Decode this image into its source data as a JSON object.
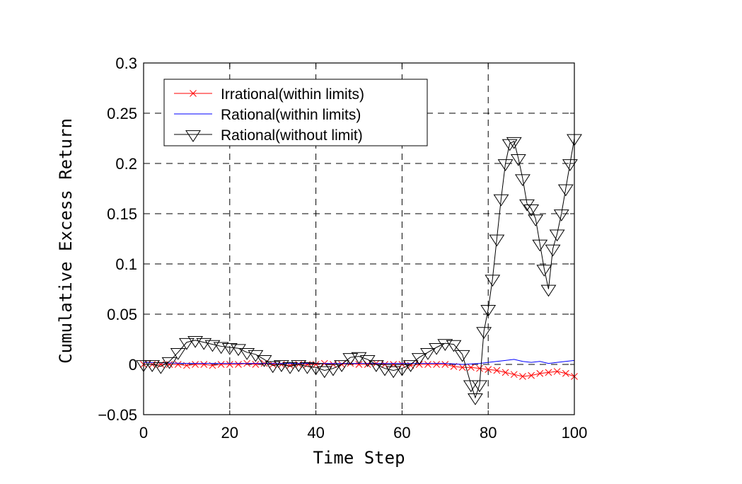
{
  "chart_data": {
    "type": "line",
    "xlabel": "Time Step",
    "ylabel": "Cumulative Excess Return",
    "xlim": [
      0,
      100
    ],
    "ylim": [
      -0.05,
      0.3
    ],
    "xticks": [
      0,
      20,
      40,
      60,
      80,
      100
    ],
    "xtick_labels": [
      "0",
      "20",
      "40",
      "60",
      "80",
      "100"
    ],
    "yticks": [
      -0.05,
      0,
      0.05,
      0.1,
      0.15,
      0.2,
      0.25,
      0.3
    ],
    "ytick_labels": [
      "−0.05",
      "0",
      "0.05",
      "0.1",
      "0.15",
      "0.2",
      "0.25",
      "0.3"
    ],
    "grid": true,
    "legend_position": "top-left",
    "series": [
      {
        "name": "Irrational(within limits)",
        "color": "#ff0000",
        "marker": "x",
        "x": [
          0,
          2,
          4,
          6,
          8,
          10,
          12,
          14,
          16,
          18,
          20,
          22,
          24,
          26,
          28,
          30,
          32,
          34,
          36,
          38,
          40,
          42,
          44,
          46,
          48,
          50,
          52,
          54,
          56,
          58,
          60,
          62,
          64,
          66,
          68,
          70,
          72,
          74,
          76,
          78,
          80,
          82,
          84,
          86,
          88,
          90,
          92,
          94,
          96,
          98,
          100
        ],
        "y": [
          0,
          0,
          0,
          0,
          0,
          -0.001,
          0,
          0,
          -0.001,
          0,
          0,
          0,
          0.001,
          0,
          0.001,
          0,
          0,
          -0.001,
          0,
          0,
          0,
          0.001,
          0,
          0,
          0.001,
          0,
          0,
          0.001,
          0,
          0,
          0,
          -0.001,
          0,
          0,
          0,
          0,
          -0.002,
          -0.003,
          -0.003,
          -0.004,
          -0.005,
          -0.006,
          -0.008,
          -0.01,
          -0.012,
          -0.011,
          -0.009,
          -0.008,
          -0.007,
          -0.009,
          -0.012
        ]
      },
      {
        "name": "Rational(within limits)",
        "color": "#0000ff",
        "marker": "none",
        "x": [
          0,
          10,
          20,
          30,
          40,
          50,
          60,
          70,
          74,
          78,
          80,
          82,
          84,
          86,
          88,
          90,
          92,
          94,
          96,
          98,
          100
        ],
        "y": [
          0.002,
          0.001,
          0.001,
          0.001,
          0.001,
          0.001,
          0.001,
          0.001,
          0,
          0.001,
          0.002,
          0.003,
          0.004,
          0.005,
          0.003,
          0.002,
          0.003,
          0.001,
          0.002,
          0.003,
          0.004
        ]
      },
      {
        "name": "Rational(without limit)",
        "color": "#000000",
        "marker": "triangle-down",
        "x": [
          0,
          2,
          4,
          6,
          8,
          10,
          12,
          14,
          16,
          18,
          20,
          22,
          24,
          26,
          28,
          30,
          32,
          34,
          36,
          38,
          40,
          42,
          44,
          46,
          48,
          50,
          52,
          54,
          56,
          58,
          60,
          62,
          64,
          66,
          68,
          70,
          72,
          74,
          76,
          77,
          78,
          79,
          80,
          81,
          82,
          83,
          84,
          85,
          86,
          87,
          88,
          89,
          90,
          91,
          92,
          93,
          94,
          95,
          96,
          97,
          98,
          99,
          100
        ],
        "y": [
          0,
          0,
          -0.002,
          0.003,
          0.012,
          0.022,
          0.024,
          0.022,
          0.02,
          0.018,
          0.017,
          0.016,
          0.012,
          0.01,
          0.005,
          -0.001,
          0,
          -0.002,
          0,
          -0.002,
          -0.003,
          -0.006,
          -0.004,
          0,
          0.007,
          0.008,
          0.005,
          0,
          -0.004,
          -0.006,
          -0.004,
          0,
          0.007,
          0.012,
          0.017,
          0.021,
          0.02,
          0.01,
          -0.02,
          -0.033,
          -0.02,
          0.033,
          0.055,
          0.085,
          0.125,
          0.165,
          0.2,
          0.22,
          0.222,
          0.205,
          0.185,
          0.16,
          0.155,
          0.145,
          0.12,
          0.095,
          0.075,
          0.115,
          0.13,
          0.15,
          0.175,
          0.2,
          0.225
        ]
      }
    ]
  }
}
